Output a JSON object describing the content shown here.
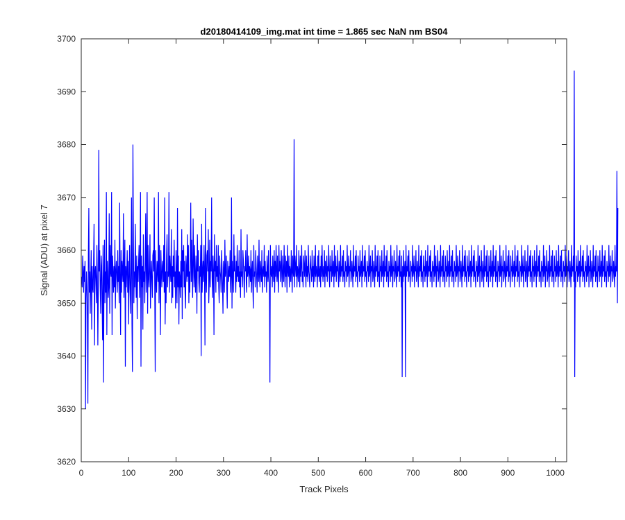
{
  "chart_data": {
    "type": "line",
    "title": "d20180414109_img.mat int time = 1.865 sec  NaN nm BS04",
    "xlabel": "Track Pixels",
    "ylabel": "Signal (ADU) at pixel 7",
    "xlim": [
      0,
      1024
    ],
    "ylim": [
      3620,
      3700
    ],
    "xticks": [
      0,
      100,
      200,
      300,
      400,
      500,
      600,
      700,
      800,
      900,
      1000
    ],
    "yticks": [
      3620,
      3630,
      3640,
      3650,
      3660,
      3670,
      3680,
      3690,
      3700
    ],
    "grid": false,
    "legend": "none",
    "series": [
      {
        "color": "#0000ff",
        "x_start": 1,
        "x_step": 1,
        "values": [
          3655,
          3653,
          3659,
          3656,
          3652,
          3657,
          3654,
          3658,
          3630,
          3651,
          3656,
          3653,
          3647,
          3631,
          3659,
          3668,
          3652,
          3656,
          3648,
          3655,
          3660,
          3645,
          3657,
          3653,
          3652,
          3658,
          3665,
          3642,
          3656,
          3657,
          3654,
          3650,
          3661,
          3655,
          3642,
          3652,
          3679,
          3656,
          3660,
          3653,
          3648,
          3659,
          3657,
          3650,
          3643,
          3661,
          3635,
          3655,
          3662,
          3650,
          3656,
          3652,
          3671,
          3644,
          3658,
          3656,
          3651,
          3653,
          3667,
          3648,
          3661,
          3656,
          3655,
          3671,
          3644,
          3659,
          3656,
          3652,
          3657,
          3653,
          3662,
          3649,
          3656,
          3658,
          3655,
          3652,
          3660,
          3654,
          3657,
          3650,
          3669,
          3655,
          3644,
          3660,
          3652,
          3658,
          3656,
          3654,
          3667,
          3651,
          3656,
          3662,
          3638,
          3657,
          3653,
          3656,
          3660,
          3652,
          3658,
          3646,
          3655,
          3661,
          3653,
          3648,
          3657,
          3670,
          3646,
          3637,
          3680,
          3662,
          3650,
          3656,
          3653,
          3665,
          3655,
          3651,
          3659,
          3647,
          3657,
          3654,
          3658,
          3661,
          3651,
          3656,
          3671,
          3638,
          3659,
          3653,
          3657,
          3645,
          3663,
          3654,
          3656,
          3650,
          3658,
          3667,
          3652,
          3656,
          3671,
          3648,
          3661,
          3655,
          3653,
          3657,
          3663,
          3649,
          3655,
          3658,
          3654,
          3651,
          3659,
          3660,
          3656,
          3670,
          3653,
          3637,
          3660,
          3655,
          3652,
          3658,
          3656,
          3654,
          3671,
          3650,
          3661,
          3655,
          3644,
          3660,
          3656,
          3653,
          3657,
          3658,
          3654,
          3661,
          3652,
          3670,
          3646,
          3656,
          3650,
          3659,
          3663,
          3653,
          3656,
          3655,
          3671,
          3652,
          3659,
          3656,
          3654,
          3664,
          3650,
          3657,
          3651,
          3659,
          3655,
          3662,
          3653,
          3656,
          3649,
          3660,
          3655,
          3650,
          3668,
          3653,
          3659,
          3646,
          3656,
          3655,
          3651,
          3658,
          3653,
          3664,
          3647,
          3660,
          3656,
          3661,
          3653,
          3658,
          3652,
          3649,
          3659,
          3656,
          3654,
          3663,
          3655,
          3661,
          3650,
          3656,
          3652,
          3658,
          3669,
          3654,
          3662,
          3656,
          3651,
          3666,
          3658,
          3653,
          3661,
          3655,
          3652,
          3659,
          3656,
          3648,
          3663,
          3656,
          3660,
          3654,
          3652,
          3657,
          3655,
          3661,
          3640,
          3665,
          3652,
          3656,
          3658,
          3654,
          3661,
          3656,
          3642,
          3668,
          3655,
          3652,
          3659,
          3660,
          3656,
          3664,
          3650,
          3654,
          3662,
          3653,
          3658,
          3656,
          3670,
          3655,
          3651,
          3659,
          3656,
          3644,
          3663,
          3656,
          3658,
          3652,
          3661,
          3655,
          3657,
          3654,
          3661,
          3653,
          3650,
          3659,
          3656,
          3655,
          3652,
          3660,
          3657,
          3653,
          3648,
          3658,
          3656,
          3652,
          3662,
          3655,
          3656,
          3659,
          3653,
          3649,
          3658,
          3656,
          3654,
          3657,
          3655,
          3660,
          3652,
          3655,
          3670,
          3649,
          3658,
          3655,
          3652,
          3663,
          3656,
          3659,
          3655,
          3652,
          3658,
          3654,
          3661,
          3655,
          3657,
          3654,
          3660,
          3653,
          3656,
          3651,
          3664,
          3655,
          3656,
          3653,
          3660,
          3658,
          3655,
          3651,
          3657,
          3656,
          3660,
          3654,
          3652,
          3663,
          3655,
          3656,
          3659,
          3653,
          3657,
          3656,
          3654,
          3660,
          3652,
          3656,
          3658,
          3653,
          3649,
          3661,
          3655,
          3656,
          3653,
          3660,
          3657,
          3655,
          3652,
          3659,
          3656,
          3654,
          3662,
          3655,
          3653,
          3658,
          3656,
          3654,
          3660,
          3652,
          3656,
          3657,
          3655,
          3661,
          3653,
          3658,
          3655,
          3656,
          3652,
          3659,
          3656,
          3654,
          3660,
          3655,
          3653,
          3635,
          3661,
          3656,
          3655,
          3657,
          3653,
          3659,
          3656,
          3654,
          3660,
          3652,
          3658,
          3655,
          3661,
          3656,
          3654,
          3659,
          3655,
          3652,
          3661,
          3656,
          3658,
          3654,
          3657,
          3660,
          3655,
          3653,
          3659,
          3656,
          3654,
          3661,
          3656,
          3653,
          3659,
          3655,
          3658,
          3652,
          3661,
          3656,
          3655,
          3659,
          3653,
          3657,
          3656,
          3654,
          3660,
          3656,
          3652,
          3659,
          3656,
          3655,
          3681,
          3653,
          3659,
          3657,
          3655,
          3661,
          3653,
          3657,
          3656,
          3654,
          3660,
          3656,
          3653,
          3659,
          3655,
          3657,
          3661,
          3654,
          3656,
          3653,
          3659,
          3657,
          3655,
          3660,
          3656,
          3653,
          3659,
          3655,
          3657,
          3654,
          3661,
          3656,
          3655,
          3653,
          3659,
          3657,
          3656,
          3654,
          3660,
          3655,
          3657,
          3653,
          3659,
          3656,
          3654,
          3661,
          3655,
          3657,
          3656,
          3653,
          3659,
          3655,
          3660,
          3654,
          3656,
          3657,
          3653,
          3659,
          3655,
          3661,
          3656,
          3654,
          3657,
          3655,
          3660,
          3653,
          3658,
          3656,
          3655,
          3659,
          3654,
          3657,
          3656,
          3661,
          3655,
          3653,
          3659,
          3656,
          3657,
          3654,
          3660,
          3655,
          3656,
          3658,
          3653,
          3661,
          3655,
          3656,
          3659,
          3654,
          3657,
          3656,
          3660,
          3655,
          3653,
          3658,
          3656,
          3654,
          3661,
          3655,
          3657,
          3656,
          3659,
          3654,
          3660,
          3655,
          3656,
          3653,
          3658,
          3656,
          3657,
          3654,
          3661,
          3655,
          3656,
          3659,
          3653,
          3657,
          3656,
          3660,
          3654,
          3655,
          3658,
          3656,
          3653,
          3661,
          3655,
          3657,
          3656,
          3659,
          3654,
          3660,
          3655,
          3656,
          3653,
          3659,
          3656,
          3657,
          3654,
          3660,
          3655,
          3656,
          3658,
          3653,
          3661,
          3655,
          3657,
          3656,
          3659,
          3654,
          3660,
          3655,
          3656,
          3653,
          3658,
          3656,
          3657,
          3654,
          3661,
          3655,
          3656,
          3659,
          3653,
          3657,
          3656,
          3660,
          3654,
          3655,
          3658,
          3656,
          3653,
          3661,
          3655,
          3657,
          3656,
          3659,
          3654,
          3660,
          3655,
          3656,
          3653,
          3659,
          3656,
          3657,
          3654,
          3660,
          3655,
          3656,
          3658,
          3653,
          3661,
          3655,
          3657,
          3656,
          3659,
          3654,
          3660,
          3655,
          3656,
          3653,
          3658,
          3656,
          3657,
          3654,
          3661,
          3655,
          3656,
          3659,
          3653,
          3657,
          3656,
          3660,
          3654,
          3655,
          3658,
          3656,
          3653,
          3661,
          3655,
          3657,
          3656,
          3659,
          3654,
          3660,
          3655,
          3656,
          3653,
          3659,
          3636,
          3657,
          3654,
          3660,
          3655,
          3656,
          3658,
          3636,
          3661,
          3655,
          3657,
          3656,
          3659,
          3654,
          3660,
          3655,
          3656,
          3653,
          3658,
          3656,
          3657,
          3654,
          3661,
          3655,
          3656,
          3659,
          3653,
          3657,
          3656,
          3660,
          3654,
          3655,
          3658,
          3656,
          3653,
          3661,
          3655,
          3657,
          3656,
          3659,
          3654,
          3660,
          3655,
          3656,
          3653,
          3659,
          3656,
          3657,
          3654,
          3660,
          3655,
          3656,
          3658,
          3653,
          3661,
          3655,
          3657,
          3656,
          3659,
          3654,
          3660,
          3655,
          3656,
          3653,
          3658,
          3656,
          3657,
          3654,
          3661,
          3655,
          3656,
          3659,
          3653,
          3657,
          3656,
          3660,
          3654,
          3655,
          3658,
          3656,
          3653,
          3661,
          3655,
          3657,
          3656,
          3659,
          3654,
          3660,
          3655,
          3656,
          3653,
          3659,
          3656,
          3657,
          3654,
          3660,
          3655,
          3656,
          3658,
          3653,
          3661,
          3655,
          3657,
          3656,
          3659,
          3654,
          3660,
          3655,
          3656,
          3653,
          3658,
          3656,
          3657,
          3654,
          3661,
          3655,
          3656,
          3659,
          3653,
          3657,
          3656,
          3660,
          3654,
          3655,
          3658,
          3656,
          3653,
          3661,
          3655,
          3657,
          3656,
          3659,
          3654,
          3660,
          3655,
          3656,
          3653,
          3659,
          3656,
          3657,
          3654,
          3660,
          3655,
          3656,
          3658,
          3653,
          3661,
          3655,
          3657,
          3656,
          3659,
          3654,
          3660,
          3655,
          3656,
          3653,
          3658,
          3656,
          3657,
          3654,
          3661,
          3655,
          3656,
          3659,
          3653,
          3657,
          3656,
          3660,
          3654,
          3655,
          3658,
          3656,
          3653,
          3661,
          3655,
          3657,
          3656,
          3659,
          3654,
          3660,
          3655,
          3656,
          3653,
          3659,
          3656,
          3657,
          3654,
          3660,
          3655,
          3656,
          3658,
          3653,
          3661,
          3655,
          3657,
          3656,
          3659,
          3654,
          3660,
          3655,
          3656,
          3653,
          3658,
          3656,
          3657,
          3654,
          3661,
          3655,
          3656,
          3659,
          3653,
          3657,
          3656,
          3660,
          3654,
          3655,
          3658,
          3656,
          3653,
          3661,
          3655,
          3657,
          3656,
          3659,
          3654,
          3660,
          3655,
          3656,
          3653,
          3659,
          3656,
          3657,
          3654,
          3660,
          3655,
          3656,
          3658,
          3653,
          3661,
          3655,
          3657,
          3656,
          3659,
          3654,
          3660,
          3655,
          3656,
          3653,
          3658,
          3656,
          3657,
          3654,
          3661,
          3655,
          3656,
          3659,
          3653,
          3657,
          3656,
          3660,
          3654,
          3655,
          3658,
          3656,
          3653,
          3661,
          3655,
          3657,
          3656,
          3659,
          3654,
          3660,
          3655,
          3656,
          3653,
          3659,
          3656,
          3657,
          3654,
          3660,
          3655,
          3656,
          3658,
          3653,
          3661,
          3655,
          3657,
          3656,
          3659,
          3654,
          3660,
          3655,
          3656,
          3653,
          3658,
          3656,
          3657,
          3654,
          3661,
          3655,
          3656,
          3659,
          3653,
          3657,
          3656,
          3660,
          3654,
          3655,
          3658,
          3656,
          3653,
          3661,
          3655,
          3657,
          3656,
          3659,
          3654,
          3660,
          3655,
          3656,
          3653,
          3659,
          3656,
          3657,
          3654,
          3660,
          3655,
          3656,
          3658,
          3653,
          3661,
          3655,
          3657,
          3656,
          3659,
          3654,
          3660,
          3655,
          3656,
          3653,
          3658,
          3656,
          3657,
          3654,
          3661,
          3655,
          3656,
          3659,
          3653,
          3657,
          3656,
          3660,
          3654,
          3655,
          3658,
          3656,
          3653,
          3661,
          3655,
          3657,
          3656,
          3659,
          3654,
          3694,
          3636,
          3656,
          3653,
          3659,
          3656,
          3657,
          3654,
          3660,
          3655,
          3656,
          3658,
          3653,
          3661,
          3655,
          3657,
          3656,
          3659,
          3654,
          3660,
          3655,
          3656,
          3653,
          3658,
          3656,
          3657,
          3654,
          3661,
          3655,
          3656,
          3659,
          3653,
          3657,
          3656,
          3660,
          3654,
          3655,
          3658,
          3656,
          3653,
          3661,
          3655,
          3657,
          3656,
          3659,
          3654,
          3660,
          3655,
          3656,
          3653,
          3659,
          3656,
          3657,
          3654,
          3660,
          3655,
          3656,
          3658,
          3653,
          3661,
          3655,
          3657,
          3656,
          3659,
          3654,
          3660,
          3655,
          3656,
          3653,
          3658,
          3656,
          3657,
          3654,
          3661,
          3655,
          3656,
          3659,
          3653,
          3657,
          3656,
          3660,
          3654,
          3655,
          3658,
          3656,
          3653,
          3661,
          3655,
          3657,
          3656,
          3675,
          3650,
          3668
        ]
      }
    ]
  }
}
